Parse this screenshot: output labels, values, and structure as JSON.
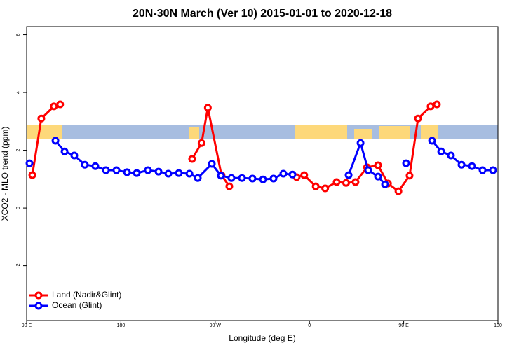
{
  "chart_data": {
    "type": "line",
    "title": "20N-30N March (Ver 10)   2015-01-01 to 2020-12-18",
    "x_label": "Longitude (deg E)",
    "y_label": "XCO2 - MLO trend (ppm)",
    "xlim": [
      90,
      540
    ],
    "ylim": [
      -3.9,
      6.28
    ],
    "xticks": [
      {
        "value": 90,
        "label": "90 E"
      },
      180,
      {
        "value": 270,
        "label": "90 W"
      },
      {
        "value": 360,
        "label": "0"
      },
      {
        "value": 450,
        "label": "90 E"
      },
      {
        "value": 540,
        "label": "180"
      }
    ],
    "yticks": [
      -2,
      0,
      2,
      4,
      6
    ],
    "legend": "bottom-left",
    "series": [
      {
        "name": "Land (Nadir&Glint)",
        "color": "#ff0000",
        "x": [
          95.4,
          104,
          116,
          122,
          null,
          248,
          257,
          263,
          276,
          283.5,
          null,
          347.8,
          355,
          366,
          375,
          386,
          395,
          404,
          415,
          425.5,
          435,
          445,
          455.6,
          463.7,
          475.7,
          481.7
        ],
        "values": [
          1.14,
          3.1,
          3.52,
          3.59,
          null,
          1.7,
          2.25,
          3.47,
          1.14,
          0.75,
          null,
          1.07,
          1.14,
          0.75,
          0.68,
          0.9,
          0.87,
          0.9,
          1.41,
          1.48,
          0.85,
          0.58,
          1.12,
          3.1,
          3.52,
          3.59
        ]
      },
      {
        "name": "Ocean (Glint)",
        "color": "#0000ff",
        "x": [
          92.7,
          null,
          117.5,
          126.2,
          135.5,
          145.6,
          155.6,
          165.7,
          175.7,
          185.8,
          195.1,
          205.8,
          215.9,
          225.3,
          235.3,
          245.4,
          253.4,
          266.8,
          275.5,
          285.5,
          295.6,
          305.6,
          315.7,
          325.7,
          335.1,
          343.8,
          null,
          397.4,
          408.8,
          416.1,
          425.5,
          432.2,
          null,
          452.3,
          null,
          477.1,
          485.8,
          495.1,
          505.2,
          515.2,
          525.3,
          535.3
        ],
        "values": [
          1.55,
          null,
          2.33,
          1.96,
          1.82,
          1.5,
          1.45,
          1.31,
          1.31,
          1.24,
          1.21,
          1.31,
          1.26,
          1.19,
          1.21,
          1.19,
          1.04,
          1.53,
          1.12,
          1.04,
          1.04,
          1.02,
          0.99,
          1.02,
          1.19,
          1.16,
          null,
          1.14,
          2.25,
          1.31,
          1.09,
          0.82,
          null,
          1.55,
          null,
          2.33,
          1.96,
          1.82,
          1.5,
          1.45,
          1.31,
          1.31
        ]
      }
    ]
  }
}
